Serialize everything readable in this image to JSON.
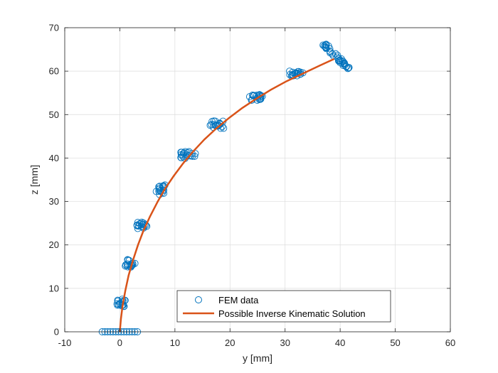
{
  "chart_data": {
    "type": "scatter",
    "xlabel": "y [mm]",
    "ylabel": "z [mm]",
    "xlim": [
      -10,
      60
    ],
    "ylim": [
      0,
      70
    ],
    "xticks": [
      -10,
      0,
      10,
      20,
      30,
      40,
      50,
      60
    ],
    "yticks": [
      0,
      10,
      20,
      30,
      40,
      50,
      60,
      70
    ],
    "grid": true,
    "legend_position": "bottom-center",
    "series": [
      {
        "name": "FEM data",
        "kind": "scatter",
        "marker": "circle-open",
        "color": "#0072BD",
        "clusters": [
          {
            "x_center": 0.0,
            "z_center": 0.0,
            "x_spread": 3.2,
            "z_spread": 0.0,
            "count": 14
          },
          {
            "x_center": 0.2,
            "z_center": 6.5,
            "x_spread": 0.9,
            "z_spread": 1.0,
            "count": 18
          },
          {
            "x_center": 1.6,
            "z_center": 15.8,
            "x_spread": 1.2,
            "z_spread": 0.9,
            "count": 18
          },
          {
            "x_center": 4.0,
            "z_center": 24.3,
            "x_spread": 0.9,
            "z_spread": 1.0,
            "count": 18
          },
          {
            "x_center": 7.6,
            "z_center": 32.7,
            "x_spread": 1.0,
            "z_spread": 1.1,
            "count": 18
          },
          {
            "x_center": 12.3,
            "z_center": 40.7,
            "x_spread": 1.5,
            "z_spread": 0.8,
            "count": 20
          },
          {
            "x_center": 17.6,
            "z_center": 47.7,
            "x_spread": 1.3,
            "z_spread": 0.9,
            "count": 20
          },
          {
            "x_center": 24.8,
            "z_center": 53.9,
            "x_spread": 1.3,
            "z_spread": 0.7,
            "count": 20
          },
          {
            "x_center": 32.0,
            "z_center": 59.4,
            "x_spread": 1.3,
            "z_spread": 0.6,
            "count": 20
          },
          {
            "x_center": 39.3,
            "z_center": 63.4,
            "x_spread": 2.2,
            "z_spread": 2.8,
            "count": 40
          }
        ]
      },
      {
        "name": "Possible Inverse Kinematic Solution",
        "kind": "line",
        "color": "#D95319",
        "x": [
          0,
          0.2,
          0.5,
          1.0,
          1.6,
          2.4,
          3.3,
          4.3,
          5.5,
          6.8,
          8.2,
          9.8,
          11.5,
          13.3,
          15.3,
          17.4,
          19.7,
          22.1,
          24.7,
          27.4,
          30.3,
          33.3,
          36.3,
          38.9
        ],
        "y": [
          0,
          3,
          6,
          9.5,
          13,
          16.5,
          20,
          23.3,
          26.6,
          29.8,
          32.9,
          35.9,
          38.8,
          41.5,
          44.2,
          46.7,
          49.1,
          51.4,
          53.6,
          55.7,
          57.7,
          59.5,
          61.3,
          62.8
        ]
      }
    ]
  }
}
